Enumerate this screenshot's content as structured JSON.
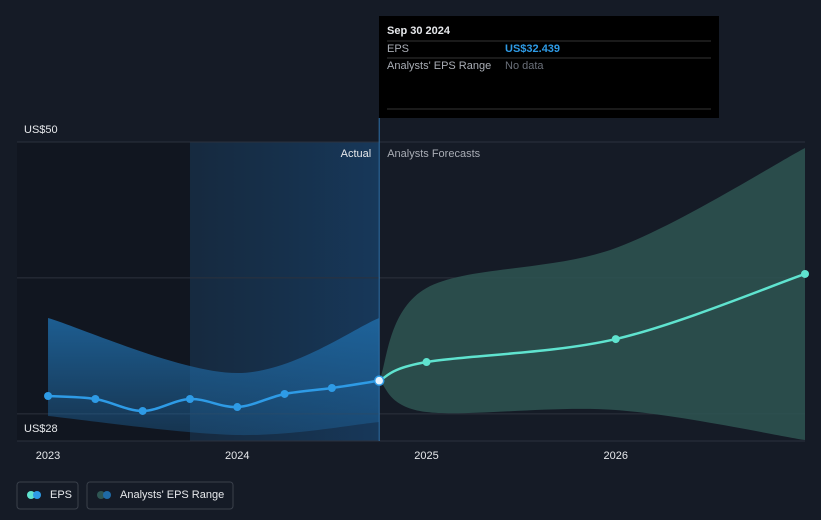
{
  "chart_data": {
    "type": "line",
    "xlim": [
      2022.836,
      2027.0
    ],
    "xticks": [
      2023,
      2024,
      2025,
      2026
    ],
    "ylim": [
      28,
      50
    ],
    "yticks": [
      {
        "value": 28,
        "label": "US$28"
      },
      {
        "value": 50,
        "label": "US$50"
      }
    ],
    "grid_lines": [
      30,
      40,
      50
    ],
    "highlight": [
      2023.75,
      2024.75
    ],
    "region_labels": {
      "actual": "Actual",
      "forecast": "Analysts Forecasts"
    },
    "series": [
      {
        "name": "EPS",
        "color": "#2e9be6",
        "forecast_color": "#5fe3cf",
        "x": [
          2023.0,
          2023.25,
          2023.5,
          2023.75,
          2024.0,
          2024.25,
          2024.5,
          2024.75,
          2025.0,
          2026.0,
          2027.0
        ],
        "values": [
          31.31,
          31.09,
          30.21,
          31.09,
          30.5,
          31.46,
          31.9,
          32.439,
          33.81,
          35.5,
          40.29
        ]
      },
      {
        "name": "Analysts' EPS Range",
        "color": "#2e5552",
        "x": [
          2024.75,
          2025.0,
          2026.0,
          2027.0
        ],
        "low": [
          32.439,
          30.13,
          30.28,
          28.07
        ],
        "high": [
          32.439,
          39.26,
          42.2,
          49.56
        ]
      }
    ],
    "actual_band": {
      "color": "#1f6aa5",
      "x": [
        2023.0,
        2024.0,
        2024.75
      ],
      "low": [
        29.84,
        28.44,
        29.4
      ],
      "high": [
        37.05,
        33.0,
        37.05
      ]
    },
    "tooltip": {
      "date": "Sep 30 2024",
      "rows": [
        {
          "label": "EPS",
          "value": "US$32.439"
        },
        {
          "label": "Analysts' EPS Range",
          "value": "No data"
        }
      ]
    }
  }
}
